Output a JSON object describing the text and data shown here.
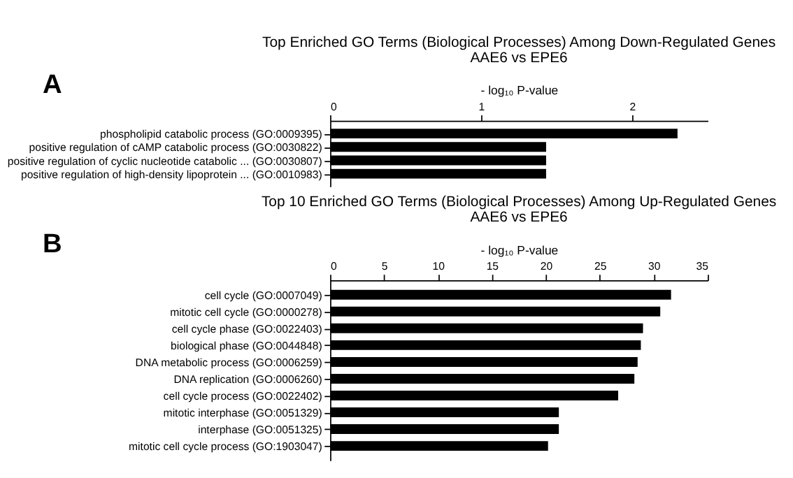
{
  "chart_data": [
    {
      "type": "bar",
      "orientation": "horizontal",
      "title": "Top Enriched GO Terms (Biological Processes) Among Down-Regulated Genes",
      "subtitle": "AAE6 vs EPE6",
      "xlabel": "- log₁₀ P-value",
      "annotations": [
        "A"
      ],
      "categories": [
        "phospholipid catabolic process (GO:0009395)",
        "positive regulation of cAMP catabolic process (GO:0030822)",
        "positive regulation of cyclic nucleotide catabolic ... (GO:0030807)",
        "positive regulation of high-density lipoprotein ... (GO:0010983)"
      ],
      "values": [
        2.3,
        1.43,
        1.43,
        1.43
      ],
      "color": "#000000",
      "xlim": [
        0,
        2.5
      ],
      "xticks": [
        0,
        1,
        2
      ],
      "grid": false
    },
    {
      "type": "bar",
      "orientation": "horizontal",
      "title": "Top 10 Enriched GO Terms (Biological Processes) Among Up-Regulated Genes",
      "subtitle": "AAE6 vs EPE6",
      "xlabel": "- log₁₀ P-value",
      "annotations": [
        "B"
      ],
      "categories": [
        "cell cycle (GO:0007049)",
        "mitotic cell cycle (GO:0000278)",
        "cell cycle phase (GO:0022403)",
        "biological phase (GO:0044848)",
        "DNA metabolic process (GO:0006259)",
        "DNA replication (GO:0006260)",
        "cell cycle process (GO:0022402)",
        "mitotic interphase (GO:0051329)",
        "interphase (GO:0051325)",
        "mitotic cell cycle process (GO:1903047)"
      ],
      "values": [
        31.6,
        30.6,
        29.0,
        28.8,
        28.5,
        28.2,
        26.7,
        21.2,
        21.2,
        20.2
      ],
      "color": "#000000",
      "xlim": [
        0,
        35
      ],
      "xticks": [
        0,
        5,
        10,
        15,
        20,
        25,
        30,
        35
      ],
      "grid": false
    }
  ]
}
